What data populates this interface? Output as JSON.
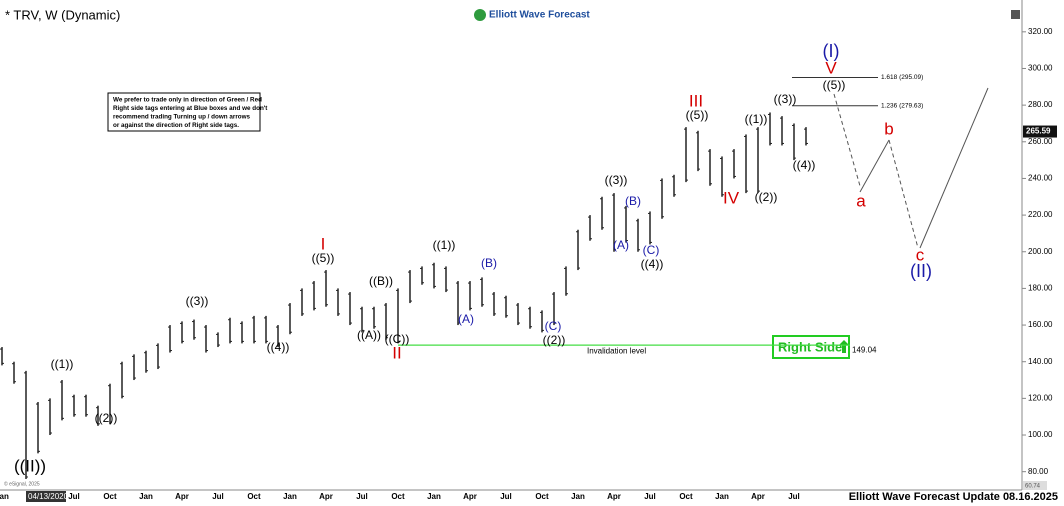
{
  "chart_data": {
    "type": "range_bar",
    "title": "* TRV, W (Dynamic)",
    "logo": "Elliott Wave Forecast",
    "note": [
      "We prefer to trade only in direction of Green / Red",
      "Right side tags entering at Blue boxes and we don't",
      "recommend trading Turning up / down arrows",
      "or against the direction of Right side tags."
    ],
    "categories": [
      "Jan",
      null,
      null,
      null,
      null,
      null,
      "Jul",
      null,
      null,
      "Oct",
      null,
      null,
      "Jan",
      null,
      null,
      "Apr",
      null,
      null,
      "Jul",
      null,
      null,
      "Oct",
      null,
      null,
      "Jan",
      null,
      null,
      "Apr",
      null,
      null,
      "Jul",
      null,
      null,
      "Oct",
      null,
      null,
      "Jan",
      null,
      null,
      "Apr",
      null,
      null,
      "Jul",
      null,
      null,
      "Oct",
      null,
      null,
      "Jan",
      null,
      null,
      "Apr",
      null,
      null,
      "Jul",
      null,
      null,
      "Oct",
      null,
      null,
      "Jan",
      null,
      null,
      "Apr",
      null,
      null,
      "Jul",
      null
    ],
    "highs": [
      148,
      140,
      135,
      118,
      120,
      130,
      122,
      122,
      116,
      128,
      140,
      144,
      146,
      150,
      160,
      162,
      163,
      160,
      156,
      164,
      162,
      165,
      165,
      160,
      172,
      180,
      184,
      190,
      180,
      178,
      170,
      170,
      172,
      180,
      190,
      192,
      194,
      192,
      184,
      184,
      186,
      178,
      176,
      172,
      170,
      168,
      178,
      192,
      212,
      220,
      230,
      232,
      225,
      218,
      222,
      240,
      242,
      268,
      266,
      256,
      252,
      256,
      264,
      268,
      276,
      274,
      270,
      268
    ],
    "lows": [
      138,
      128,
      76,
      90,
      100,
      108,
      110,
      110,
      105,
      106,
      120,
      130,
      134,
      136,
      145,
      150,
      152,
      145,
      148,
      150,
      150,
      150,
      150,
      148,
      155,
      165,
      168,
      170,
      165,
      160,
      156,
      158,
      152,
      150,
      172,
      182,
      180,
      178,
      160,
      168,
      170,
      165,
      164,
      160,
      158,
      156,
      160,
      176,
      190,
      206,
      212,
      200,
      205,
      200,
      204,
      218,
      230,
      238,
      244,
      236,
      230,
      240,
      232,
      232,
      258,
      258,
      250,
      258
    ],
    "color": "#222222",
    "ylim": [
      70,
      333
    ],
    "yticks": [
      {
        "value": 80,
        "label": "80.00"
      },
      {
        "value": 100,
        "label": "100.00"
      },
      {
        "value": 120,
        "label": "120.00"
      },
      {
        "value": 140,
        "label": "140.00"
      },
      {
        "value": 160,
        "label": "160.00"
      },
      {
        "value": 180,
        "label": "180.00"
      },
      {
        "value": 200,
        "label": "200.00"
      },
      {
        "value": 220,
        "label": "220.00"
      },
      {
        "value": 240,
        "label": "240.00"
      },
      {
        "value": 260,
        "label": "260.00"
      },
      {
        "value": 280,
        "label": "280.00"
      },
      {
        "value": 300,
        "label": "300.00"
      },
      {
        "value": 320,
        "label": "320.00"
      }
    ],
    "last_price": 265.59,
    "axis_low": 60.74,
    "fib_levels": [
      {
        "value": 295.09,
        "label": "1.618 (295.09)"
      },
      {
        "value": 279.63,
        "label": "1.236 (279.63)"
      }
    ],
    "invalidation": {
      "value": 149.04,
      "text": "Invalidation level"
    },
    "right_side": "Right Side",
    "waves": [
      {
        "text": "((II))",
        "color": "#000000"
      },
      {
        "text": "((1))",
        "color": "#000000"
      },
      {
        "text": "((2))",
        "color": "#000000"
      },
      {
        "text": "((3))",
        "color": "#000000"
      },
      {
        "text": "((4))",
        "color": "#000000"
      },
      {
        "text": "((5))",
        "color": "#000000"
      },
      {
        "text": "I",
        "color": "#d40000"
      },
      {
        "text": "((A))",
        "color": "#000000"
      },
      {
        "text": "((B))",
        "color": "#000000"
      },
      {
        "text": "((C))",
        "color": "#000000"
      },
      {
        "text": "II",
        "color": "#d40000"
      },
      {
        "text": "((1))",
        "color": "#000000"
      },
      {
        "text": "(A)",
        "color": "#1a1aa8"
      },
      {
        "text": "(B)",
        "color": "#1a1aa8"
      },
      {
        "text": "(C)",
        "color": "#1a1aa8"
      },
      {
        "text": "((2))",
        "color": "#000000"
      },
      {
        "text": "((3))",
        "color": "#000000"
      },
      {
        "text": "(B)",
        "color": "#1a1aa8"
      },
      {
        "text": "(A)",
        "color": "#1a1aa8"
      },
      {
        "text": "(C)",
        "color": "#1a1aa8"
      },
      {
        "text": "((4))",
        "color": "#000000"
      },
      {
        "text": "((5))",
        "color": "#000000"
      },
      {
        "text": "III",
        "color": "#d40000"
      },
      {
        "text": "IV",
        "color": "#d40000"
      },
      {
        "text": "((1))",
        "color": "#000000"
      },
      {
        "text": "((2))",
        "color": "#000000"
      },
      {
        "text": "((3))",
        "color": "#000000"
      },
      {
        "text": "((4))",
        "color": "#000000"
      },
      {
        "text": "((5))",
        "color": "#000000"
      },
      {
        "text": "V",
        "color": "#d40000"
      },
      {
        "text": "(I)",
        "color": "#1a1aa8"
      },
      {
        "text": "a",
        "color": "#d40000"
      },
      {
        "text": "b",
        "color": "#d40000"
      },
      {
        "text": "c",
        "color": "#d40000"
      },
      {
        "text": "(II)",
        "color": "#1a1aa8"
      }
    ],
    "cursor_date": "04/13/2020",
    "copyright": "© eSignal, 2025",
    "footer": "Elliott Wave Forecast Update 08.16.2025"
  }
}
